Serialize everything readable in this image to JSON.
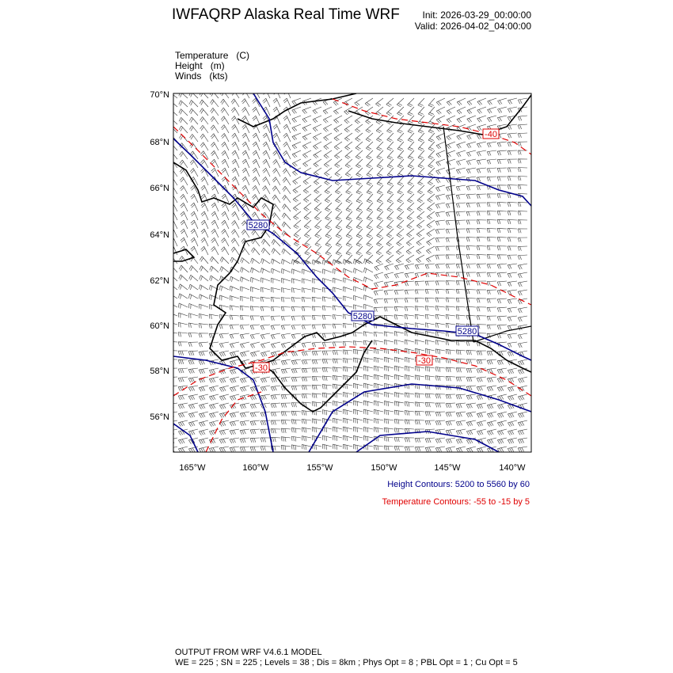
{
  "header": {
    "title": "IWFAQRP Alaska Real Time WRF",
    "init": "Init: 2026-03-29_00:00:00",
    "valid": "Valid: 2026-04-02_04:00:00"
  },
  "fields": [
    "Temperature   (C)",
    "Height   (m)",
    "Winds   (kts)"
  ],
  "map": {
    "lat_ticks": [
      "70°N",
      "68°N",
      "66°N",
      "64°N",
      "62°N",
      "60°N",
      "58°N",
      "56°N"
    ],
    "lon_ticks": [
      "165°W",
      "160°W",
      "155°W",
      "150°W",
      "145°W",
      "140°W"
    ],
    "height_labels": [
      "5280",
      "5280",
      "5280"
    ],
    "temp_labels": [
      "-40",
      "-30",
      "-30"
    ],
    "colors": {
      "height": "#00008b",
      "temperature": "#e00000",
      "coast": "#000000",
      "barbs": "#333333"
    }
  },
  "legend": {
    "height": "Height Contours: 5200 to 5560 by 60",
    "temperature": "Temperature Contours: -55 to -15 by 5"
  },
  "footer": {
    "line1": "OUTPUT FROM WRF V4.6.1 MODEL",
    "line2": "WE = 225 ; SN = 225 ; Levels = 38 ; Dis = 8km ; Phys Opt = 8 ; PBL Opt = 1 ; Cu Opt = 5"
  }
}
